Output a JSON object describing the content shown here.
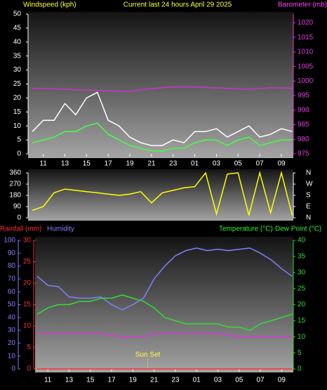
{
  "chart_data": [
    {
      "type": "line",
      "title": "Current last 24 hours April 29 2025",
      "y_label": "Windspeed (kph)",
      "y2_label": "Barometer (mb)",
      "x": [
        10,
        11,
        12,
        13,
        14,
        15,
        16,
        17,
        18,
        19,
        20,
        21,
        22,
        23,
        24,
        25,
        26,
        27,
        28,
        29,
        30,
        31,
        32,
        33,
        34
      ],
      "xlim": [
        9.6,
        34.1
      ],
      "xticks": [
        11,
        13,
        15,
        17,
        19,
        21,
        23,
        {
          "value": 25,
          "label": "01"
        },
        {
          "value": 27,
          "label": "03"
        },
        {
          "value": 29,
          "label": "05"
        },
        {
          "value": 31,
          "label": "07"
        },
        {
          "value": 33,
          "label": "09"
        }
      ],
      "ylim": [
        0,
        50
      ],
      "yticks": [
        0,
        5,
        10,
        15,
        20,
        25,
        30,
        35,
        40,
        45,
        50
      ],
      "y2lim": [
        975,
        1023
      ],
      "y2ticks": [
        975,
        980,
        985,
        990,
        995,
        1000,
        1005,
        1010,
        1015,
        1020
      ],
      "series": [
        {
          "color": "#ffffff",
          "values": [
            8,
            12,
            12,
            18,
            14,
            20,
            22,
            12,
            10,
            6,
            4,
            3,
            3,
            5,
            4,
            8,
            8,
            9,
            6,
            8,
            10,
            6,
            7,
            9,
            8
          ]
        },
        {
          "color": "#44ff44",
          "values": [
            4,
            5,
            6,
            8,
            8,
            10,
            11,
            7,
            5,
            3,
            2,
            1,
            1,
            2,
            2,
            4,
            5,
            5,
            3,
            5,
            6,
            3,
            4,
            5,
            5
          ]
        },
        {
          "color": "#cc33cc",
          "axis": "y2",
          "values": [
            997.5,
            997.4,
            997.3,
            997.2,
            997,
            996.9,
            996.8,
            996.7,
            996.5,
            996.5,
            997,
            997.4,
            997.7,
            998,
            998,
            998,
            997.8,
            997.6,
            997.5,
            997.3,
            997.2,
            997.4,
            997.7,
            997.6,
            997.5
          ]
        }
      ]
    },
    {
      "type": "line",
      "x": [
        10,
        11,
        12,
        13,
        14,
        15,
        16,
        17,
        18,
        19,
        20,
        21,
        22,
        23,
        24,
        25,
        26,
        27,
        28,
        29,
        30,
        31,
        32,
        33,
        34
      ],
      "xlim": [
        9.6,
        34.1
      ],
      "ylim": [
        0,
        360
      ],
      "yticks": [
        0,
        90,
        180,
        270,
        360
      ],
      "y2lim": [
        0,
        360
      ],
      "y2ticks": [
        {
          "value": 0,
          "label": "N"
        },
        {
          "value": 90,
          "label": "E"
        },
        {
          "value": 180,
          "label": "S"
        },
        {
          "value": 270,
          "label": "W"
        },
        {
          "value": 360,
          "label": "N"
        }
      ],
      "series": [
        {
          "color": "#ffff00",
          "values": [
            60,
            90,
            200,
            230,
            220,
            210,
            200,
            190,
            180,
            190,
            210,
            120,
            200,
            220,
            240,
            250,
            360,
            30,
            350,
            360,
            20,
            360,
            40,
            360,
            20
          ]
        }
      ]
    },
    {
      "type": "line",
      "x": [
        10,
        11,
        12,
        13,
        14,
        15,
        16,
        17,
        18,
        19,
        20,
        21,
        22,
        23,
        24,
        25,
        26,
        27,
        28,
        29,
        30,
        31,
        32,
        33,
        34
      ],
      "xlim": [
        9.8,
        34.1
      ],
      "xticks": [
        11,
        13,
        15,
        17,
        19,
        21,
        23,
        {
          "value": 25,
          "label": "01"
        },
        {
          "value": 27,
          "label": "03"
        },
        {
          "value": 29,
          "label": "05"
        },
        {
          "value": 31,
          "label": "07"
        },
        {
          "value": 33,
          "label": "09"
        }
      ],
      "ylim": [
        0,
        100
      ],
      "yticks": [
        0,
        10,
        20,
        30,
        40,
        50,
        60,
        70,
        80,
        90,
        100
      ],
      "y3lim": [
        0,
        30
      ],
      "y3ticks": [
        0,
        5,
        10,
        15,
        20,
        25,
        30
      ],
      "y2lim": [
        0,
        40
      ],
      "y2ticks": [
        0,
        5,
        10,
        15,
        20,
        25,
        30,
        35,
        40
      ],
      "series": [
        {
          "name": "Rainfall (mm)",
          "color": "#ff3030",
          "axis": "y3",
          "values": [
            0,
            0,
            0,
            0,
            0,
            0,
            0,
            0,
            0,
            0,
            0,
            0,
            0,
            0,
            0,
            0,
            0,
            0,
            0,
            0,
            0,
            0,
            0,
            0,
            0
          ]
        },
        {
          "name": "Humidity",
          "color": "#8080ff",
          "axis": "y",
          "values": [
            72,
            65,
            64,
            56,
            55,
            55,
            56,
            50,
            46,
            50,
            55,
            70,
            80,
            88,
            92,
            94,
            92,
            93,
            92,
            93,
            94,
            90,
            85,
            78,
            72
          ]
        },
        {
          "name": "Temperature (°C)",
          "color": "#33dd33",
          "axis": "y2",
          "values": [
            17,
            19,
            20,
            20,
            21,
            21,
            22,
            22,
            23,
            22,
            21,
            19,
            16,
            15,
            14,
            14,
            14,
            14,
            13,
            13,
            12,
            14,
            15,
            16,
            17
          ]
        },
        {
          "name": "Dew Point (°C)",
          "color": "#dd33dd",
          "axis": "y2",
          "values": [
            11,
            11,
            11,
            11,
            11,
            11,
            11,
            10.5,
            10,
            10,
            10,
            11,
            11,
            11,
            11,
            11,
            11,
            11,
            10.5,
            10,
            10,
            10,
            10,
            10,
            10
          ]
        }
      ],
      "annotations": [
        {
          "text": "Sun Set",
          "x": 20.4
        }
      ]
    }
  ]
}
